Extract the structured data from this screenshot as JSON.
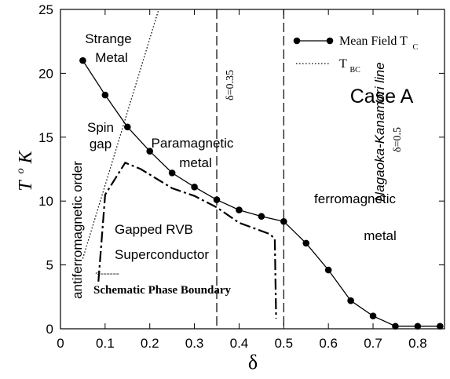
{
  "chart_data": {
    "type": "line",
    "xlabel": "δ",
    "ylabel_main": "T",
    "ylabel_sup": "o",
    "ylabel_unit": "K",
    "xlim": [
      0,
      0.86
    ],
    "ylim": [
      0,
      25
    ],
    "x_ticks": [
      0,
      0.1,
      0.2,
      0.3,
      0.4,
      0.5,
      0.6,
      0.7,
      0.8
    ],
    "x_tick_labels": [
      "0",
      "0.1",
      "0.2",
      "0.3",
      "0.4",
      "0.5",
      "0.6",
      "0.7",
      "0.8"
    ],
    "y_ticks": [
      0,
      5,
      10,
      15,
      20,
      25
    ],
    "y_tick_labels": [
      "0",
      "5",
      "10",
      "15",
      "20",
      "25"
    ],
    "series": [
      {
        "name": "Mean Field T",
        "name_sub": "C",
        "style": "solid-with-dots",
        "x": [
          0.05,
          0.1,
          0.15,
          0.2,
          0.25,
          0.3,
          0.35,
          0.4,
          0.45,
          0.5,
          0.55,
          0.6,
          0.65,
          0.7,
          0.75,
          0.8,
          0.85
        ],
        "y": [
          21.0,
          18.3,
          15.8,
          13.9,
          12.2,
          11.1,
          10.1,
          9.3,
          8.8,
          8.4,
          6.7,
          4.6,
          2.2,
          1.0,
          0.2,
          0.2,
          0.2
        ]
      },
      {
        "name": "T",
        "name_sub": "BC",
        "style": "dotted",
        "x": [
          0.05,
          0.22
        ],
        "y": [
          5.5,
          25.0
        ]
      },
      {
        "style": "dash-dot",
        "x": [
          0.085,
          0.1,
          0.145,
          0.18,
          0.25,
          0.3,
          0.35,
          0.4,
          0.47,
          0.48,
          0.483
        ],
        "y": [
          3.7,
          10.5,
          13.0,
          12.5,
          11.0,
          10.4,
          9.5,
          8.3,
          7.4,
          7.0,
          0.8
        ]
      }
    ],
    "vlines": [
      {
        "x": 0.35,
        "label": "δ=0.35"
      },
      {
        "x": 0.5,
        "label": "δ=0.5"
      }
    ],
    "annotations": {
      "strange_1": "Strange",
      "strange_2": "Metal",
      "spin_1": "Spin",
      "spin_2": "gap",
      "para_1": "Paramagnetic",
      "para_2": "metal",
      "ferro_1": "ferromagnetic",
      "ferro_2": "metal",
      "rvb": "Gapped RVB",
      "sc": "Superconductor",
      "afm": "antiferromagnetic order",
      "nk": "Nagaoka-Kanamori line",
      "case": "Case A",
      "arrow": "<------",
      "schematic": "Schematic Phase Boundary"
    },
    "legend_position": "top-right"
  },
  "colors": {
    "ink": "#000000",
    "background": "#ffffff"
  }
}
